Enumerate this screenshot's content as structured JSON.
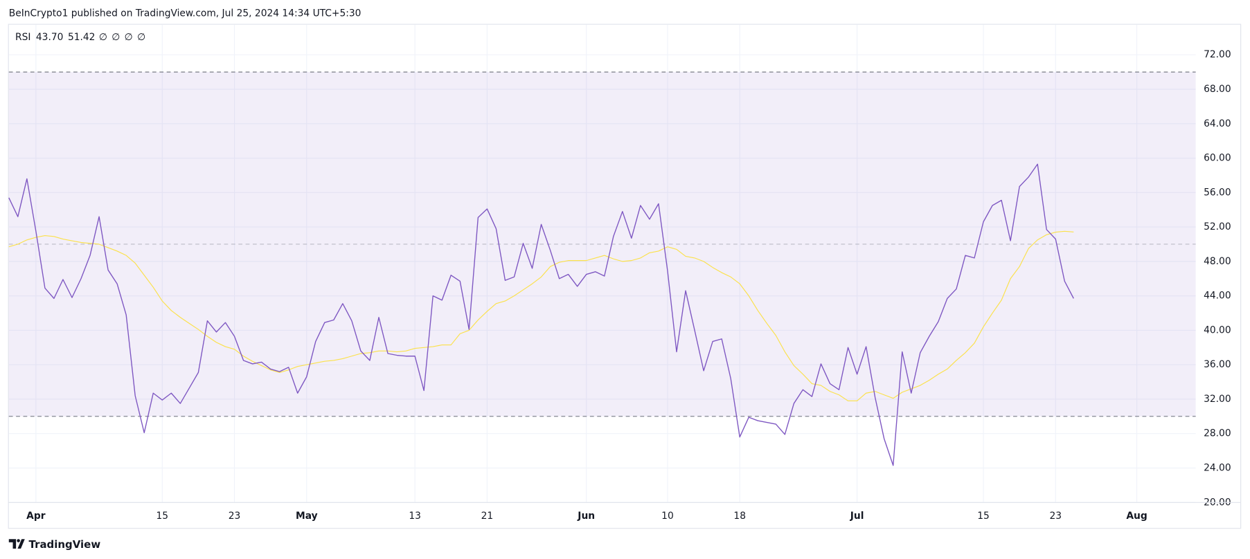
{
  "header": {
    "text": "BeInCrypto1 published on TradingView.com, Jul 25, 2024 14:34 UTC+5:30"
  },
  "footer": {
    "brand": "TradingView"
  },
  "chart_data": {
    "type": "line",
    "legend": {
      "title": "RSI",
      "values": [
        "43.70",
        "51.42"
      ],
      "icons": [
        "∅",
        "∅",
        "∅",
        "∅"
      ]
    },
    "categories": [
      null,
      null,
      null,
      "Apr",
      null,
      null,
      null,
      null,
      null,
      null,
      null,
      null,
      null,
      null,
      null,
      null,
      null,
      "15",
      null,
      null,
      null,
      null,
      null,
      null,
      null,
      "23",
      null,
      null,
      null,
      null,
      null,
      null,
      null,
      "May",
      null,
      null,
      null,
      null,
      null,
      null,
      null,
      null,
      null,
      null,
      null,
      "13",
      null,
      null,
      null,
      null,
      null,
      null,
      null,
      "21",
      null,
      null,
      null,
      null,
      null,
      null,
      null,
      null,
      null,
      null,
      "Jun",
      null,
      null,
      null,
      null,
      null,
      null,
      null,
      null,
      "10",
      null,
      null,
      null,
      null,
      null,
      null,
      null,
      "18",
      null,
      null,
      null,
      null,
      null,
      null,
      null,
      null,
      null,
      null,
      null,
      null,
      "Jul",
      null,
      null,
      null,
      null,
      null,
      null,
      null,
      null,
      null,
      null,
      null,
      null,
      null,
      "15",
      null,
      null,
      null,
      null,
      null,
      null,
      null,
      "23",
      null,
      null,
      null,
      null,
      null,
      null,
      null,
      null,
      "Aug",
      null,
      null,
      null,
      null,
      null,
      null
    ],
    "series": [
      {
        "name": "RSI",
        "color": "#7e57c2",
        "values": [
          55.4,
          53.2,
          57.6,
          51.5,
          44.9,
          43.7,
          45.9,
          43.8,
          46.0,
          48.7,
          53.2,
          47.0,
          45.4,
          41.8,
          32.4,
          28.1,
          32.7,
          31.9,
          32.7,
          31.5,
          33.3,
          35.1,
          41.1,
          39.8,
          40.9,
          39.3,
          36.5,
          36.1,
          36.3,
          35.5,
          35.2,
          35.7,
          32.7,
          34.6,
          38.7,
          40.9,
          41.2,
          43.1,
          41.1,
          37.6,
          36.5,
          41.5,
          37.3,
          37.1,
          37.0,
          37.0,
          33.0,
          44.0,
          43.5,
          46.4,
          45.7,
          40.1,
          53.1,
          54.1,
          51.8,
          45.8,
          46.2,
          50.1,
          47.2,
          52.3,
          49.3,
          46.0,
          46.5,
          45.1,
          46.5,
          46.8,
          46.3,
          50.9,
          53.8,
          50.7,
          54.5,
          52.9,
          54.7,
          46.9,
          37.5,
          44.6,
          40.0,
          35.3,
          38.7,
          39.0,
          34.4,
          27.6,
          29.9,
          29.5,
          29.3,
          29.1,
          27.9,
          31.5,
          33.1,
          32.3,
          36.1,
          33.8,
          33.1,
          38.0,
          34.9,
          38.1,
          32.2,
          27.4,
          24.3,
          37.5,
          32.7,
          37.4,
          39.3,
          41.0,
          43.7,
          44.8,
          48.7,
          48.4,
          52.6,
          54.5,
          55.1,
          50.4,
          56.7,
          57.8,
          59.3,
          51.7,
          50.6,
          45.7,
          43.7,
          null,
          null,
          null,
          null,
          null,
          null,
          null,
          null,
          null,
          null,
          null,
          null,
          null
        ]
      },
      {
        "color": "#fbe14a",
        "values": [
          49.7,
          50.0,
          50.5,
          50.8,
          51.0,
          50.9,
          50.6,
          50.4,
          50.2,
          50.1,
          50.0,
          49.6,
          49.2,
          48.7,
          47.8,
          46.4,
          45.0,
          43.4,
          42.3,
          41.5,
          40.8,
          40.1,
          39.3,
          38.6,
          38.1,
          37.8,
          37.0,
          36.4,
          35.9,
          35.4,
          35.1,
          35.4,
          35.8,
          36.0,
          36.2,
          36.4,
          36.5,
          36.7,
          37.0,
          37.3,
          37.4,
          37.6,
          37.6,
          37.5,
          37.6,
          37.9,
          38.0,
          38.1,
          38.3,
          38.3,
          39.6,
          40.0,
          41.2,
          42.2,
          43.1,
          43.4,
          44.0,
          44.7,
          45.4,
          46.2,
          47.4,
          47.9,
          48.1,
          48.1,
          48.1,
          48.4,
          48.7,
          48.3,
          48.0,
          48.1,
          48.4,
          49.0,
          49.2,
          49.7,
          49.4,
          48.6,
          48.4,
          48.0,
          47.3,
          46.7,
          46.2,
          45.4,
          44.0,
          42.3,
          40.8,
          39.4,
          37.5,
          35.9,
          34.9,
          33.8,
          33.6,
          32.9,
          32.5,
          31.8,
          31.8,
          32.7,
          32.9,
          32.5,
          32.1,
          32.8,
          33.2,
          33.6,
          34.2,
          34.9,
          35.5,
          36.5,
          37.4,
          38.5,
          40.4,
          42.0,
          43.5,
          46.0,
          47.4,
          49.5,
          50.5,
          51.1,
          51.4,
          51.5,
          51.42,
          null,
          null,
          null,
          null,
          null,
          null,
          null,
          null,
          null,
          null,
          null,
          null,
          null
        ]
      }
    ],
    "bands": {
      "upper": 70,
      "middle": 50,
      "lower": 30,
      "color": "#7e57c2"
    },
    "ylim": [
      20,
      75.5
    ],
    "yticks": [
      {
        "value": 20,
        "label": "20.00"
      },
      {
        "value": 24,
        "label": "24.00"
      },
      {
        "value": 28,
        "label": "28.00"
      },
      {
        "value": 32,
        "label": "32.00"
      },
      {
        "value": 36,
        "label": "36.00"
      },
      {
        "value": 40,
        "label": "40.00"
      },
      {
        "value": 44,
        "label": "44.00"
      },
      {
        "value": 48,
        "label": "48.00"
      },
      {
        "value": 52,
        "label": "52.00"
      },
      {
        "value": 56,
        "label": "56.00"
      },
      {
        "value": 60,
        "label": "60.00"
      },
      {
        "value": 64,
        "label": "64.00"
      },
      {
        "value": 68,
        "label": "68.00"
      },
      {
        "value": 72,
        "label": "72.00"
      }
    ],
    "grid": true
  }
}
